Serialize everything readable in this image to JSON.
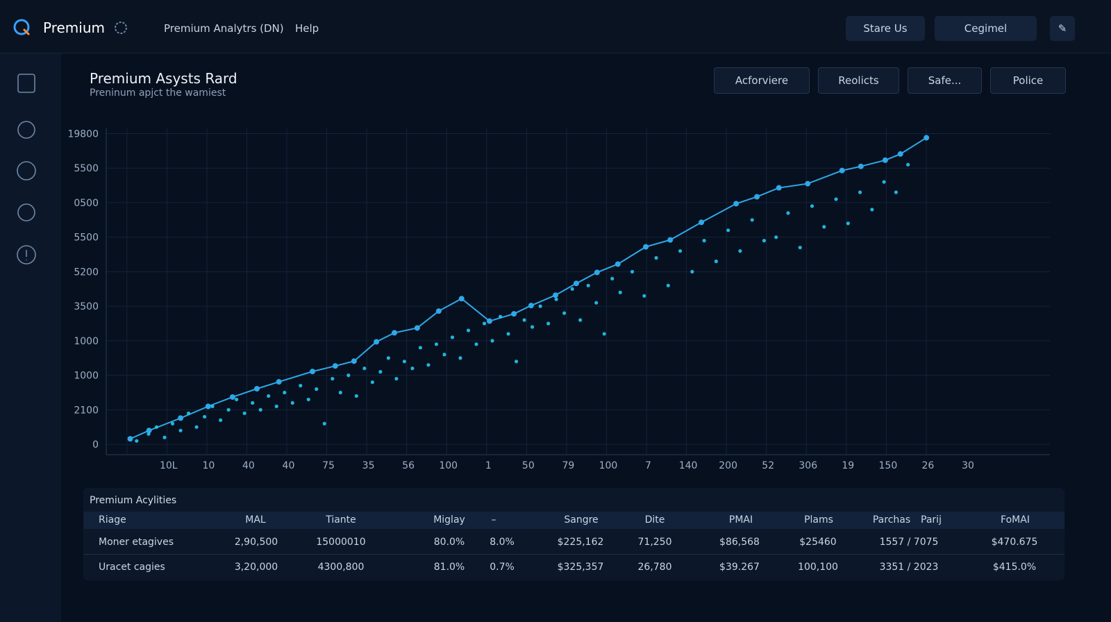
{
  "header": {
    "brand": "Premium",
    "nav": [
      "Premium Analytrs (DN)",
      "Help"
    ],
    "buttons": [
      "Stare Us",
      "Cegimel"
    ]
  },
  "page": {
    "title": "Premium Asysts Rard",
    "subtitle": "Preninum apjct the wamiest",
    "filters": [
      "Acforviere",
      "Reolicts",
      "Safe...",
      "Police"
    ]
  },
  "chart_data": {
    "type": "scatter",
    "xlim": [
      -0.56,
      23.05
    ],
    "ylim": [
      -0.3,
      9.15
    ],
    "grid": true,
    "xticks": [
      {
        "value": 1,
        "label": "10L"
      },
      {
        "value": 2,
        "label": "10"
      },
      {
        "value": 3,
        "label": "40"
      },
      {
        "value": 4,
        "label": "40"
      },
      {
        "value": 5,
        "label": "75"
      },
      {
        "value": 6,
        "label": "35"
      },
      {
        "value": 7,
        "label": "56"
      },
      {
        "value": 8,
        "label": "100"
      },
      {
        "value": 9,
        "label": "1"
      },
      {
        "value": 10,
        "label": "50"
      },
      {
        "value": 11,
        "label": "79"
      },
      {
        "value": 12,
        "label": "100"
      },
      {
        "value": 13,
        "label": "7"
      },
      {
        "value": 14,
        "label": "140"
      },
      {
        "value": 15,
        "label": "200"
      },
      {
        "value": 16,
        "label": "52"
      },
      {
        "value": 17,
        "label": "306"
      },
      {
        "value": 18,
        "label": "19"
      },
      {
        "value": 19,
        "label": "150"
      },
      {
        "value": 20,
        "label": "26"
      },
      {
        "value": 21,
        "label": "30"
      }
    ],
    "yticks": [
      0,
      {
        "value": 1,
        "label": "2100"
      },
      {
        "value": 2,
        "label": "1000"
      },
      {
        "value": 3,
        "label": "1000"
      },
      {
        "value": 4,
        "label": "3500"
      },
      {
        "value": 5,
        "label": "5200"
      },
      {
        "value": 6,
        "label": "5500"
      },
      {
        "value": 7,
        "label": "0500"
      },
      {
        "value": 8,
        "label": "5500"
      },
      {
        "value": 9,
        "label": "19800"
      }
    ],
    "series": [
      {
        "type": "line",
        "color": "#2fa8e8",
        "x": [
          0.04,
          0.51,
          1.3,
          1.99,
          2.6,
          3.21,
          3.76,
          4.6,
          5.17,
          5.64,
          6.2,
          6.65,
          7.22,
          7.76,
          8.33,
          9.03,
          9.64,
          10.07,
          10.68,
          11.2,
          11.72,
          12.24,
          12.94,
          13.55,
          14.33,
          15.2,
          15.72,
          16.27,
          16.99,
          17.85,
          18.32,
          18.93,
          19.31,
          19.96
        ],
        "values": [
          0.16,
          0.4,
          0.76,
          1.1,
          1.37,
          1.61,
          1.81,
          2.11,
          2.27,
          2.41,
          2.97,
          3.23,
          3.37,
          3.86,
          4.22,
          3.57,
          3.78,
          4.02,
          4.32,
          4.66,
          4.98,
          5.22,
          5.72,
          5.92,
          6.43,
          6.97,
          7.17,
          7.43,
          7.55,
          7.93,
          8.05,
          8.23,
          8.41,
          8.88
        ]
      },
      {
        "type": "scatter",
        "color": "#22c8f0",
        "x": [
          0.2,
          0.5,
          0.7,
          0.9,
          1.1,
          1.3,
          1.5,
          1.7,
          1.9,
          2.1,
          2.3,
          2.5,
          2.7,
          2.9,
          3.1,
          3.3,
          3.5,
          3.7,
          3.9,
          4.1,
          4.3,
          4.5,
          4.7,
          4.9,
          5.1,
          5.3,
          5.5,
          5.7,
          5.9,
          6.1,
          6.3,
          6.5,
          6.7,
          6.9,
          7.1,
          7.3,
          7.5,
          7.7,
          7.9,
          8.1,
          8.3,
          8.5,
          8.7,
          8.9,
          9.1,
          9.3,
          9.5,
          9.7,
          9.9,
          10.1,
          10.3,
          10.5,
          10.7,
          10.9,
          11.1,
          11.3,
          11.5,
          11.7,
          11.9,
          12.1,
          12.3,
          12.6,
          12.9,
          13.2,
          13.5,
          13.8,
          14.1,
          14.4,
          14.7,
          15.0,
          15.3,
          15.6,
          15.9,
          16.2,
          16.5,
          16.8,
          17.1,
          17.4,
          17.7,
          18.0,
          18.3,
          18.6,
          18.9,
          19.2,
          19.5
        ],
        "values": [
          0.1,
          0.3,
          0.5,
          0.2,
          0.6,
          0.4,
          0.9,
          0.5,
          0.8,
          1.1,
          0.7,
          1.0,
          1.3,
          0.9,
          1.2,
          1.0,
          1.4,
          1.1,
          1.5,
          1.2,
          1.7,
          1.3,
          1.6,
          0.6,
          1.9,
          1.5,
          2.0,
          1.4,
          2.2,
          1.8,
          2.1,
          2.5,
          1.9,
          2.4,
          2.2,
          2.8,
          2.3,
          2.9,
          2.6,
          3.1,
          2.5,
          3.3,
          2.9,
          3.5,
          3.0,
          3.7,
          3.2,
          2.4,
          3.6,
          3.4,
          4.0,
          3.5,
          4.2,
          3.8,
          4.5,
          3.6,
          4.6,
          4.1,
          3.2,
          4.8,
          4.4,
          5.0,
          4.3,
          5.4,
          4.6,
          5.6,
          5.0,
          5.9,
          5.3,
          6.2,
          5.6,
          6.5,
          5.9,
          6.0,
          6.7,
          5.7,
          6.9,
          6.3,
          7.1,
          6.4,
          7.3,
          6.8,
          7.6,
          7.3,
          8.1
        ]
      }
    ]
  },
  "table": {
    "title": "Premium Acylities",
    "headers": [
      "Riage",
      "MAL",
      "Tiante",
      "Miglay",
      "–",
      "Sangre",
      "Dite",
      "PMAI",
      "Plams",
      "Parchas",
      "Parij",
      "FoMAI"
    ],
    "rows": [
      [
        "Moner etagives",
        "2,90,500",
        "15000010",
        "80.0%",
        "8.0%",
        "$225,162",
        "71,250",
        "$86,568",
        "$25460",
        "1557 / 7075",
        "$470.675"
      ],
      [
        "Uracet cagies",
        "3,20,000",
        "4300,800",
        "81.0%",
        "0.7%",
        "$325,357",
        "26,780",
        "$39.267",
        "100,100",
        "3351 / 2023",
        "$415.0%"
      ]
    ]
  }
}
